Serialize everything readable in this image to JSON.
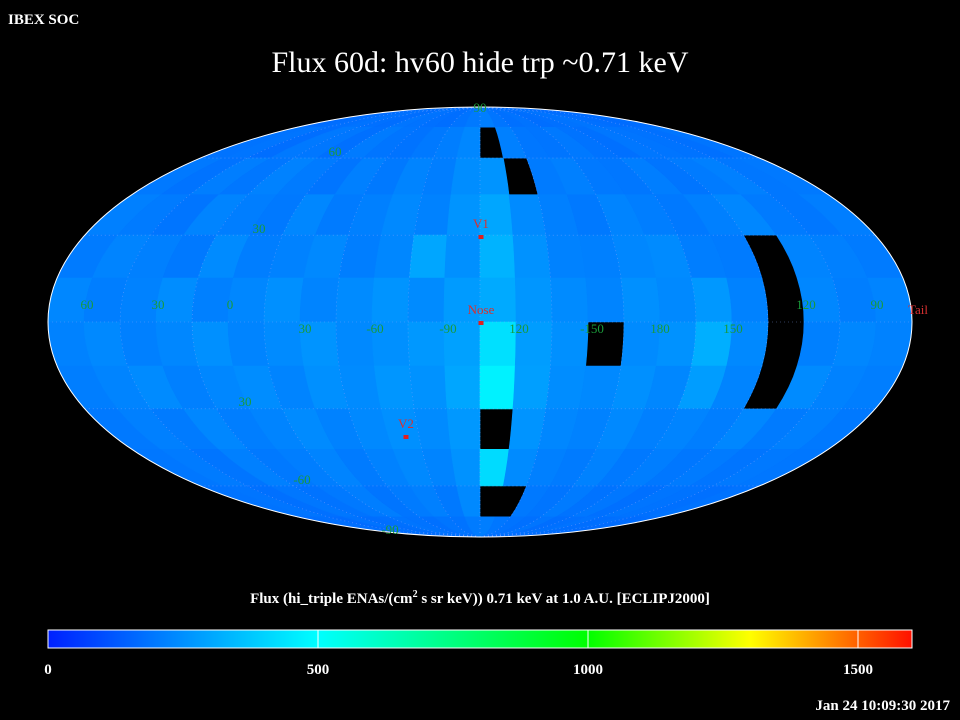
{
  "header": {
    "source": "IBEX SOC",
    "title": "Flux   60d: hv60 hide trp ~0.71 keV",
    "timestamp": "Jan 24 10:09:30 2017"
  },
  "map": {
    "flux": [
      [
        170,
        175,
        180,
        185,
        180,
        175,
        190,
        185,
        180,
        175,
        185,
        200,
        210,
        190,
        180,
        185,
        175,
        180,
        185,
        190,
        180,
        175,
        170,
        175
      ],
      [
        185,
        190,
        175,
        200,
        195,
        180,
        205,
        190,
        185,
        200,
        210,
        230,
        null,
        215,
        195,
        190,
        200,
        185,
        180,
        195,
        190,
        185,
        180,
        190
      ],
      [
        200,
        185,
        210,
        195,
        220,
        205,
        190,
        215,
        200,
        225,
        210,
        245,
        260,
        null,
        205,
        215,
        200,
        195,
        210,
        190,
        205,
        215,
        195,
        200
      ],
      [
        215,
        205,
        190,
        225,
        210,
        200,
        230,
        205,
        215,
        235,
        220,
        260,
        300,
        240,
        215,
        200,
        225,
        210,
        200,
        215,
        230,
        205,
        195,
        210
      ],
      [
        205,
        225,
        215,
        200,
        240,
        210,
        220,
        235,
        210,
        230,
        300,
        250,
        330,
        255,
        220,
        215,
        230,
        240,
        210,
        205,
        null,
        225,
        215,
        205
      ],
      [
        230,
        210,
        220,
        245,
        215,
        230,
        250,
        225,
        240,
        260,
        240,
        275,
        310,
        265,
        240,
        225,
        250,
        235,
        270,
        220,
        null,
        230,
        210,
        225
      ],
      [
        220,
        235,
        215,
        230,
        250,
        225,
        240,
        260,
        235,
        250,
        270,
        290,
        430,
        280,
        250,
        null,
        240,
        255,
        320,
        235,
        null,
        215,
        230,
        220
      ],
      [
        210,
        225,
        240,
        215,
        230,
        245,
        225,
        250,
        240,
        265,
        255,
        300,
        470,
        285,
        245,
        235,
        250,
        230,
        280,
        225,
        null,
        240,
        220,
        210
      ],
      [
        200,
        215,
        205,
        230,
        210,
        225,
        240,
        220,
        235,
        250,
        240,
        270,
        null,
        260,
        230,
        220,
        235,
        215,
        225,
        210,
        230,
        205,
        215,
        200
      ],
      [
        195,
        205,
        190,
        215,
        200,
        210,
        225,
        205,
        220,
        235,
        225,
        255,
        420,
        240,
        215,
        205,
        220,
        200,
        210,
        195,
        205,
        190,
        200,
        195
      ],
      [
        185,
        190,
        180,
        195,
        185,
        200,
        210,
        190,
        205,
        215,
        200,
        235,
        null,
        null,
        200,
        190,
        205,
        185,
        195,
        180,
        190,
        185,
        180,
        185
      ],
      [
        175,
        180,
        170,
        185,
        175,
        180,
        190,
        185,
        180,
        190,
        185,
        205,
        210,
        195,
        185,
        180,
        190,
        175,
        180,
        185,
        175,
        180,
        170,
        175
      ]
    ],
    "lat_labels": [
      "90",
      "60",
      "30",
      "30",
      "-60",
      "-90"
    ],
    "lon_labels": [
      "60",
      "30",
      "0",
      "30",
      "-60",
      "-90",
      "120",
      "-150",
      "180",
      "150",
      "120",
      "90"
    ],
    "markers": [
      "V1",
      "Nose",
      "V2",
      "Tail"
    ]
  },
  "colorbar": {
    "label_parts": [
      "Flux (hi_triple ENAs/(cm",
      "2",
      " s sr keV))  0.71 keV at 1.0 A.U. [ECLIPJ2000]"
    ],
    "lim": [
      0,
      1600
    ],
    "ticks": [
      0,
      500,
      1000,
      1500
    ],
    "stops": [
      {
        "value": 0,
        "color": "#0020ff"
      },
      {
        "value": 500,
        "color": "#00ffff"
      },
      {
        "value": 1000,
        "color": "#00ff00"
      },
      {
        "value": 1300,
        "color": "#ffff00"
      },
      {
        "value": 1600,
        "color": "#ff1000"
      }
    ]
  }
}
